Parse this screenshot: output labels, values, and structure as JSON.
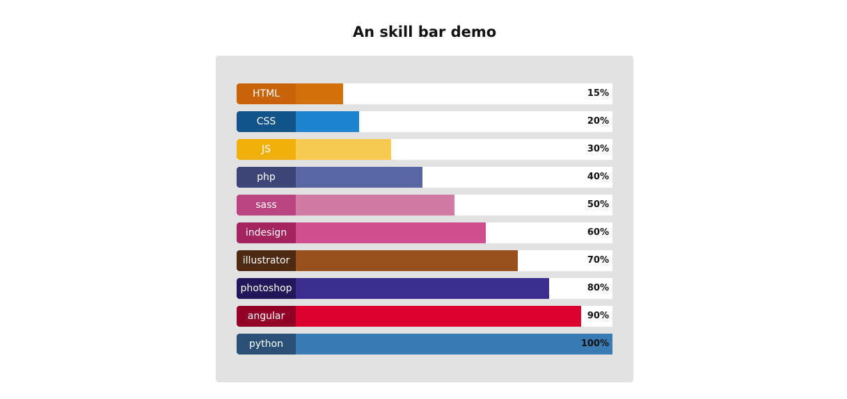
{
  "header": {
    "title": "An skill bar demo"
  },
  "chart_data": {
    "type": "bar",
    "title": "An skill bar demo",
    "categories": [
      "HTML",
      "CSS",
      "JS",
      "php",
      "sass",
      "indesign",
      "illustrator",
      "photoshop",
      "angular",
      "python"
    ],
    "values": [
      15,
      20,
      30,
      40,
      50,
      60,
      70,
      80,
      90,
      100
    ],
    "value_labels": [
      "15%",
      "20%",
      "30%",
      "40%",
      "50%",
      "60%",
      "70%",
      "80%",
      "90%",
      "100%"
    ],
    "ylim": [
      0,
      100
    ],
    "orientation": "horizontal",
    "grid": false,
    "legend": "none",
    "label_colors": [
      "#c8630a",
      "#12538a",
      "#f0b00b",
      "#3d4576",
      "#bb4580",
      "#a3245f",
      "#4f2a12",
      "#221758",
      "#920027",
      "#2a5175"
    ],
    "bar_colors": [
      "#d2710c",
      "#1f84cf",
      "#f7cb52",
      "#5a65a4",
      "#d07aa4",
      "#d0508f",
      "#98511e",
      "#3b2d8e",
      "#dc0030",
      "#3a7bb3"
    ]
  }
}
